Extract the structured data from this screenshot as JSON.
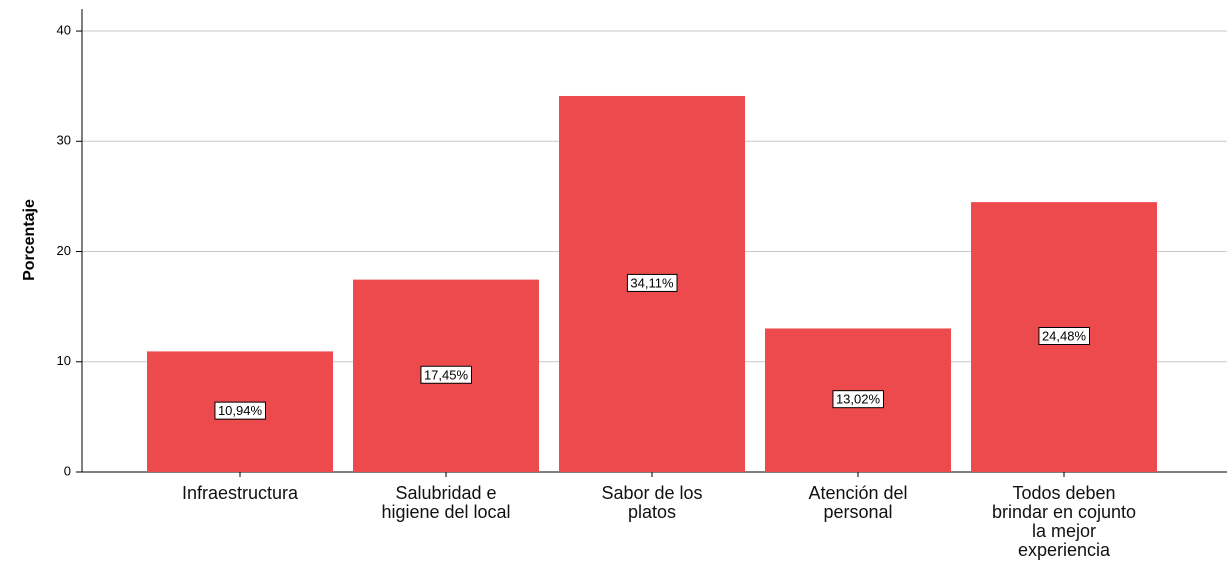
{
  "chart_data": {
    "type": "bar",
    "y_label": "Porcentaje",
    "categories": [
      "Infraestructura",
      "Salubridad e\nhigiene del local",
      "Sabor de los\nplatos",
      "Atención del\npersonal",
      "Todos deben\nbrindar en cojunto\nla mejor\nexperiencia"
    ],
    "values": [
      10.94,
      17.45,
      34.11,
      13.02,
      24.48
    ],
    "value_labels": [
      "10,94%",
      "17,45%",
      "34,11%",
      "13,02%",
      "24,48%"
    ],
    "color": "#ec4a4d",
    "ylim": [
      0,
      42
    ],
    "yticks": [
      0,
      10,
      20,
      30,
      40
    ],
    "grid": true
  }
}
